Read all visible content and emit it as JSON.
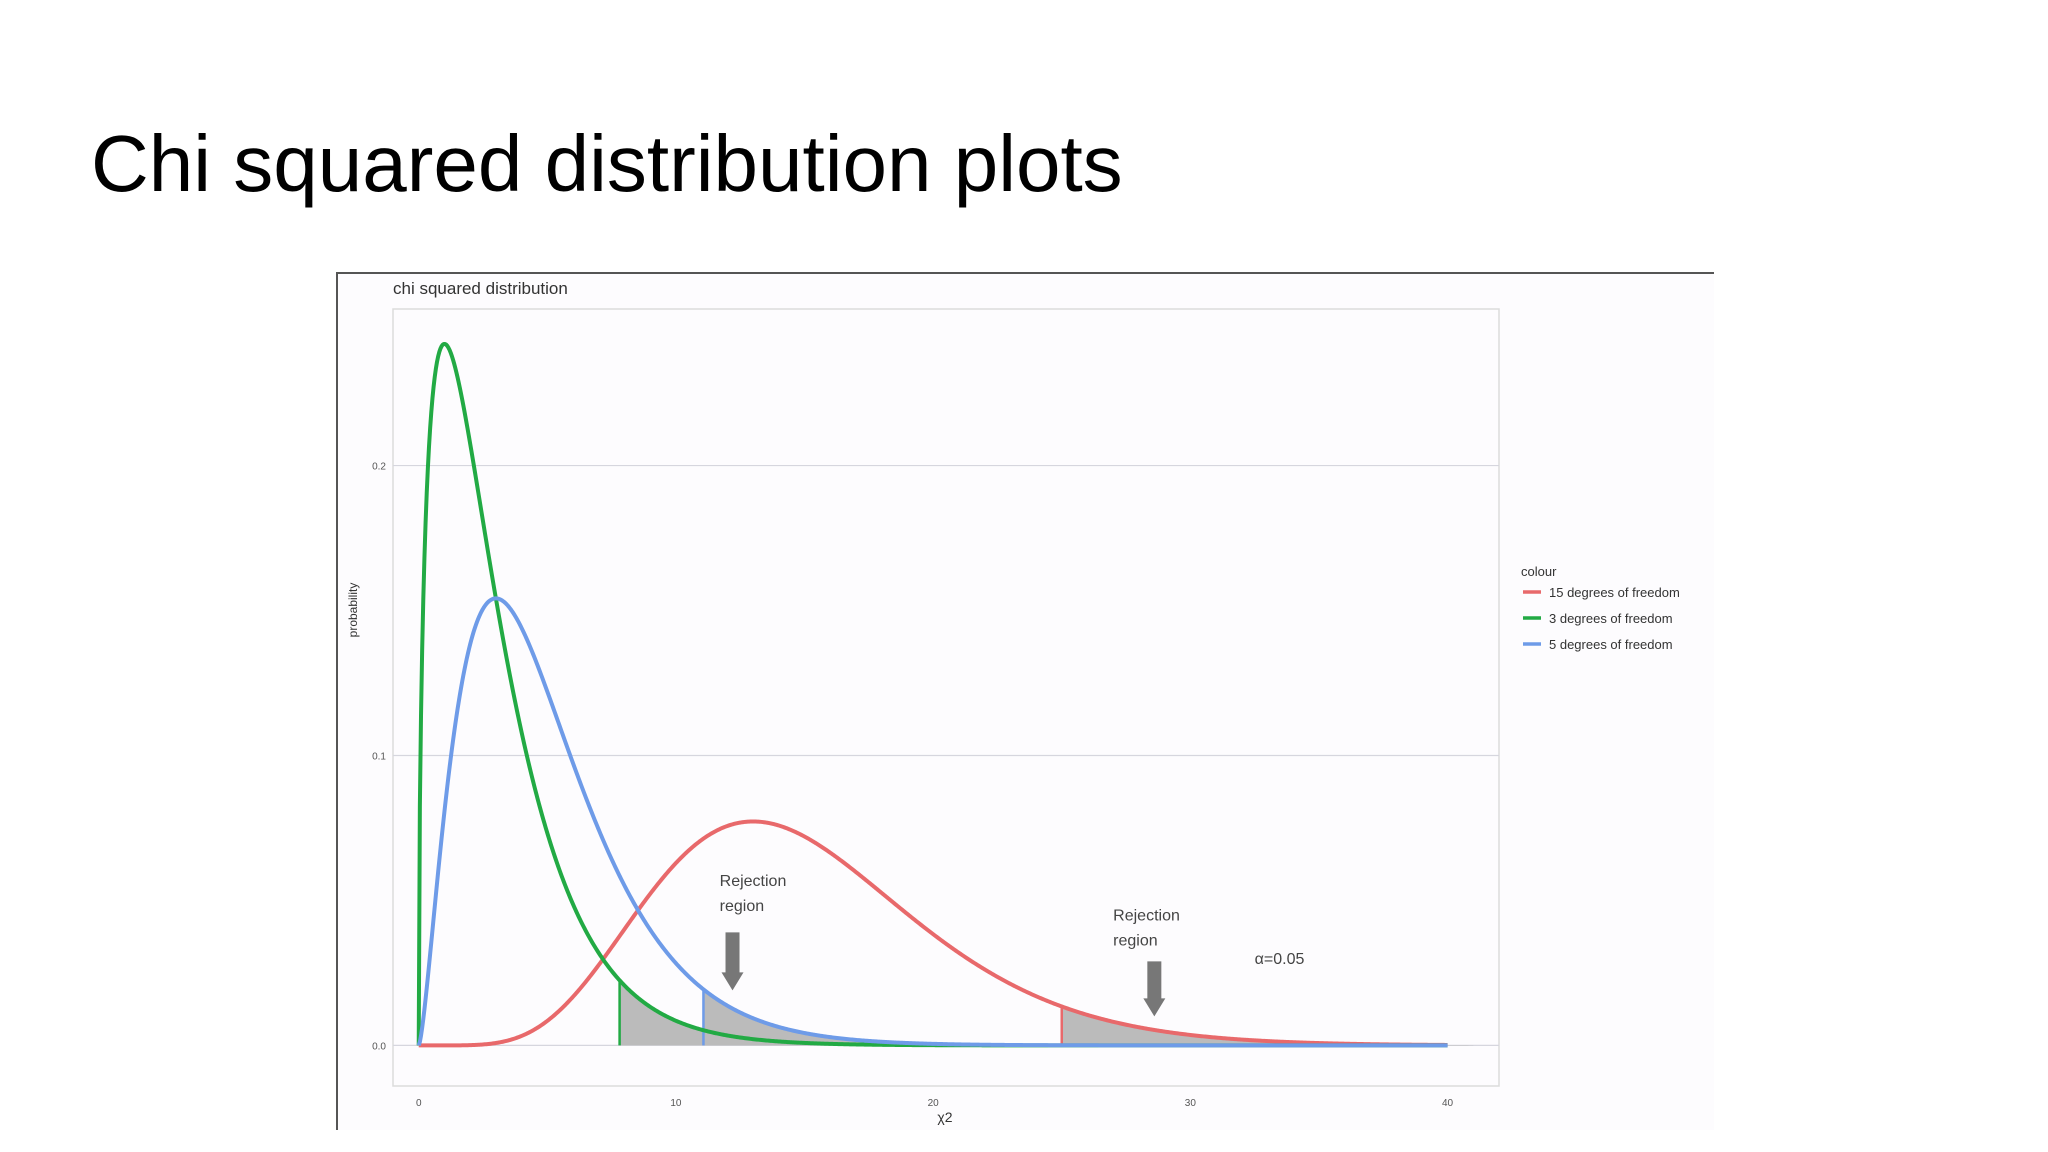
{
  "slide": {
    "title": "Chi squared distribution plots"
  },
  "chart_data": {
    "type": "line",
    "title": "chi squared distribution",
    "xlabel": "χ2",
    "ylabel": "probability",
    "xlim": [
      -1,
      42
    ],
    "ylim": [
      -0.014,
      0.254
    ],
    "xticks": [
      0,
      10,
      20,
      30,
      40
    ],
    "xtick_labels": [
      "0",
      "10",
      "20",
      "30",
      "40"
    ],
    "yticks": [
      0.0,
      0.1,
      0.2
    ],
    "ytick_labels": [
      "0.0",
      "0.1",
      "0.2"
    ],
    "grid": true,
    "legend": {
      "title": "colour",
      "placement": "right",
      "entries": [
        "15 degrees of freedom",
        "3 degrees of freedom",
        "5 degrees of freedom"
      ]
    },
    "series": [
      {
        "name": "15 degrees of freedom",
        "df": 15,
        "color": "#e8696b",
        "x": [
          0,
          2,
          4,
          6,
          8,
          10,
          12,
          13,
          14,
          16,
          18,
          20,
          22,
          24,
          26,
          28,
          30,
          32,
          34,
          36,
          38,
          40
        ],
        "y": [
          0.0,
          0.0001,
          0.0028,
          0.0164,
          0.0417,
          0.065,
          0.0771,
          0.0786,
          0.0775,
          0.0716,
          0.062,
          0.0516,
          0.0411,
          0.0316,
          0.0234,
          0.0169,
          0.0118,
          0.0081,
          0.0054,
          0.0035,
          0.0023,
          0.0014
        ]
      },
      {
        "name": "3 degrees of freedom",
        "df": 3,
        "color": "#22aa44",
        "x": [
          0,
          0.5,
          1,
          2,
          3,
          4,
          5,
          6,
          7,
          8,
          10,
          12,
          14,
          16,
          20,
          25,
          30,
          40
        ],
        "y": [
          0.0,
          0.2197,
          0.242,
          0.2076,
          0.1542,
          0.108,
          0.0733,
          0.0487,
          0.0319,
          0.0207,
          0.0085,
          0.0034,
          0.0013,
          0.0005,
          0.0001,
          0.0,
          0.0,
          0.0
        ]
      },
      {
        "name": "5 degrees of freedom",
        "df": 5,
        "color": "#6e9be8",
        "x": [
          0,
          1,
          2,
          3,
          4,
          5,
          6,
          7,
          8,
          9,
          10,
          11,
          12,
          14,
          16,
          18,
          20,
          25,
          30,
          40
        ],
        "y": [
          0.0,
          0.0807,
          0.138,
          0.1542,
          0.1439,
          0.122,
          0.0973,
          0.0744,
          0.0551,
          0.0398,
          0.0283,
          0.0198,
          0.0138,
          0.0065,
          0.003,
          0.0013,
          0.0006,
          0.0001,
          0.0,
          0.0
        ]
      }
    ],
    "rejection_regions": [
      {
        "df": 3,
        "critical_x": 7.81,
        "fill": "#bbbbbb"
      },
      {
        "df": 5,
        "critical_x": 11.07,
        "fill": "#bbbbbb"
      },
      {
        "df": 15,
        "critical_x": 25.0,
        "fill": "#bbbbbb"
      }
    ],
    "annotations": [
      {
        "text_line1": "Rejection",
        "text_line2": "region",
        "x": 11.7,
        "y": 0.055,
        "arrow_x": 12.2,
        "arrow_y_top": 0.039,
        "arrow_y_bottom": 0.019
      },
      {
        "text_line1": "Rejection",
        "text_line2": "region",
        "x": 27,
        "y": 0.043,
        "arrow_x": 28.6,
        "arrow_y_top": 0.029,
        "arrow_y_bottom": 0.01
      },
      {
        "text": "α=0.05",
        "x": 32.5,
        "y": 0.028
      }
    ]
  }
}
